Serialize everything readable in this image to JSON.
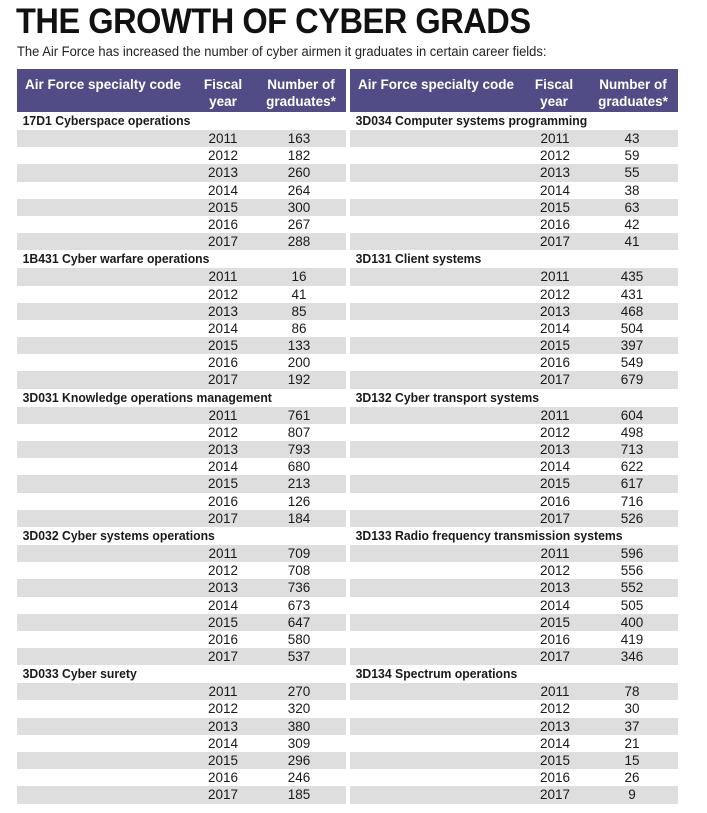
{
  "title": "THE GROWTH OF CYBER GRADS",
  "subtitle": "The Air Force has increased the number of cyber airmen it graduates in certain career fields:",
  "colors": {
    "header_bg": "#524c86",
    "row_shade": "#dedede"
  },
  "headers": {
    "code": "Air Force specialty code",
    "year_line1": "Fiscal",
    "year_line2": "year",
    "grads_line1": "Number of",
    "grads_line2": "graduates*"
  },
  "left_groups": [
    {
      "title": "17D1 Cyberspace operations",
      "rows": [
        {
          "year": "2011",
          "count": "163"
        },
        {
          "year": "2012",
          "count": "182"
        },
        {
          "year": "2013",
          "count": "260"
        },
        {
          "year": "2014",
          "count": "264"
        },
        {
          "year": "2015",
          "count": "300"
        },
        {
          "year": "2016",
          "count": "267"
        },
        {
          "year": "2017",
          "count": "288"
        }
      ]
    },
    {
      "title": "1B431 Cyber warfare operations",
      "rows": [
        {
          "year": "2011",
          "count": "16"
        },
        {
          "year": "2012",
          "count": "41"
        },
        {
          "year": "2013",
          "count": "85"
        },
        {
          "year": "2014",
          "count": "86"
        },
        {
          "year": "2015",
          "count": "133"
        },
        {
          "year": "2016",
          "count": "200"
        },
        {
          "year": "2017",
          "count": "192"
        }
      ]
    },
    {
      "title": "3D031 Knowledge operations management",
      "rows": [
        {
          "year": "2011",
          "count": "761"
        },
        {
          "year": "2012",
          "count": "807"
        },
        {
          "year": "2013",
          "count": "793"
        },
        {
          "year": "2014",
          "count": "680"
        },
        {
          "year": "2015",
          "count": "213"
        },
        {
          "year": "2016",
          "count": "126"
        },
        {
          "year": "2017",
          "count": "184"
        }
      ]
    },
    {
      "title": "3D032 Cyber systems operations",
      "rows": [
        {
          "year": "2011",
          "count": "709"
        },
        {
          "year": "2012",
          "count": "708"
        },
        {
          "year": "2013",
          "count": "736"
        },
        {
          "year": "2014",
          "count": "673"
        },
        {
          "year": "2015",
          "count": "647"
        },
        {
          "year": "2016",
          "count": "580"
        },
        {
          "year": "2017",
          "count": "537"
        }
      ]
    },
    {
      "title": "3D033 Cyber surety",
      "rows": [
        {
          "year": "2011",
          "count": "270"
        },
        {
          "year": "2012",
          "count": "320"
        },
        {
          "year": "2013",
          "count": "380"
        },
        {
          "year": "2014",
          "count": "309"
        },
        {
          "year": "2015",
          "count": "296"
        },
        {
          "year": "2016",
          "count": "246"
        },
        {
          "year": "2017",
          "count": "185"
        }
      ]
    }
  ],
  "right_groups": [
    {
      "title": "3D034 Computer systems programming",
      "rows": [
        {
          "year": "2011",
          "count": "43"
        },
        {
          "year": "2012",
          "count": "59"
        },
        {
          "year": "2013",
          "count": "55"
        },
        {
          "year": "2014",
          "count": "38"
        },
        {
          "year": "2015",
          "count": "63"
        },
        {
          "year": "2016",
          "count": "42"
        },
        {
          "year": "2017",
          "count": "41"
        }
      ]
    },
    {
      "title": "3D131 Client systems",
      "rows": [
        {
          "year": "2011",
          "count": "435"
        },
        {
          "year": "2012",
          "count": "431"
        },
        {
          "year": "2013",
          "count": "468"
        },
        {
          "year": "2014",
          "count": "504"
        },
        {
          "year": "2015",
          "count": "397"
        },
        {
          "year": "2016",
          "count": "549"
        },
        {
          "year": "2017",
          "count": "679"
        }
      ]
    },
    {
      "title": "3D132 Cyber transport systems",
      "rows": [
        {
          "year": "2011",
          "count": "604"
        },
        {
          "year": "2012",
          "count": "498"
        },
        {
          "year": "2013",
          "count": "713"
        },
        {
          "year": "2014",
          "count": "622"
        },
        {
          "year": "2015",
          "count": "617"
        },
        {
          "year": "2016",
          "count": "716"
        },
        {
          "year": "2017",
          "count": "526"
        }
      ]
    },
    {
      "title": "3D133 Radio frequency transmission systems",
      "rows": [
        {
          "year": "2011",
          "count": "596"
        },
        {
          "year": "2012",
          "count": "556"
        },
        {
          "year": "2013",
          "count": "552"
        },
        {
          "year": "2014",
          "count": "505"
        },
        {
          "year": "2015",
          "count": "400"
        },
        {
          "year": "2016",
          "count": "419"
        },
        {
          "year": "2017",
          "count": "346"
        }
      ]
    },
    {
      "title": "3D134 Spectrum operations",
      "rows": [
        {
          "year": "2011",
          "count": "78"
        },
        {
          "year": "2012",
          "count": "30"
        },
        {
          "year": "2013",
          "count": "37"
        },
        {
          "year": "2014",
          "count": "21"
        },
        {
          "year": "2015",
          "count": "15"
        },
        {
          "year": "2016",
          "count": "26"
        },
        {
          "year": "2017",
          "count": "9"
        }
      ]
    }
  ]
}
